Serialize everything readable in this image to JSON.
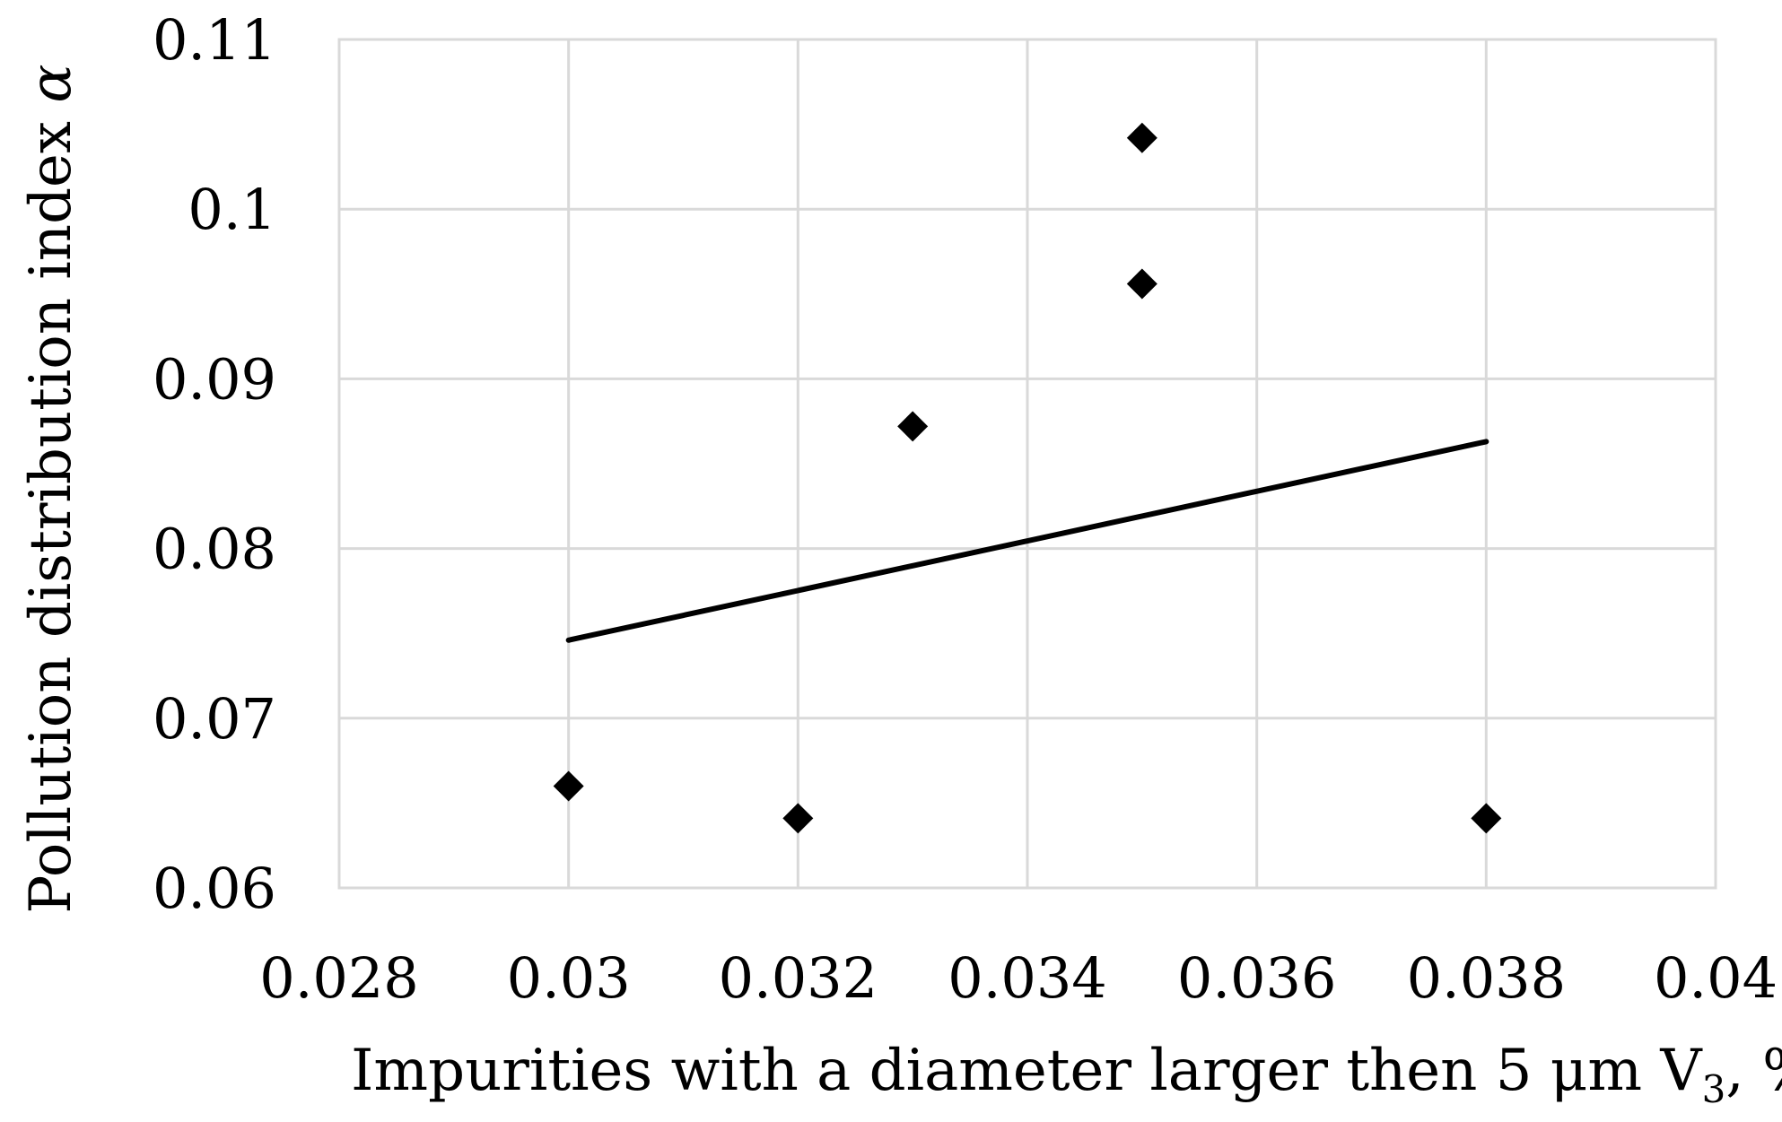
{
  "chart_data": {
    "type": "scatter",
    "xlabel": "Impurities with a diameter larger then  5 μm V",
    "xlabel_sub": "3",
    "xlabel_suffix": ", %",
    "ylabel": "Pollution distribution index ",
    "ylabel_symbol": "α",
    "xlim": [
      0.028,
      0.04
    ],
    "ylim": [
      0.06,
      0.11
    ],
    "xticks": [
      "0.028",
      "0.03",
      "0.032",
      "0.034",
      "0.036",
      "0.038",
      "0.04"
    ],
    "yticks": [
      "0.06",
      "0.07",
      "0.08",
      "0.09",
      "0.1",
      "0.11"
    ],
    "grid": true,
    "series": [
      {
        "marker": "diamond",
        "color": "#000000",
        "points": [
          {
            "x": 0.03,
            "y": 0.066
          },
          {
            "x": 0.032,
            "y": 0.0641
          },
          {
            "x": 0.033,
            "y": 0.0872
          },
          {
            "x": 0.035,
            "y": 0.1042
          },
          {
            "x": 0.035,
            "y": 0.0956
          },
          {
            "x": 0.038,
            "y": 0.0641
          }
        ]
      }
    ],
    "trendline": {
      "type": "linear",
      "color": "#000000",
      "points": [
        {
          "x": 0.03,
          "y": 0.0746
        },
        {
          "x": 0.038,
          "y": 0.0863
        }
      ]
    }
  }
}
